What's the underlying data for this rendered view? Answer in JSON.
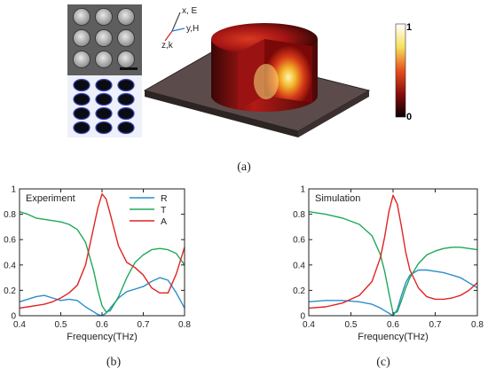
{
  "labels": {
    "a": "(a)",
    "b": "(b)",
    "c": "(c)"
  },
  "colorbar": {
    "max_label": "1",
    "min_label": "0"
  },
  "axes_arrows": {
    "x": "x, E",
    "y": "y,H",
    "z": "z,k"
  },
  "chart_data": [
    {
      "type": "line",
      "corner_label": "Experiment",
      "xlabel": "Frequency(THz)",
      "ylabel": "",
      "xlim": [
        0.4,
        0.8
      ],
      "ylim": [
        0,
        1.0
      ],
      "xticks": [
        "0.4",
        "0.5",
        "0.6",
        "0.7",
        "0.8"
      ],
      "yticks": [
        "0",
        "0.2",
        "0.4",
        "0.6",
        "0.8",
        "1"
      ],
      "legend": "top-right",
      "series": [
        {
          "name": "R",
          "color": "#2a8ec8",
          "x": [
            0.4,
            0.42,
            0.44,
            0.46,
            0.48,
            0.5,
            0.52,
            0.54,
            0.56,
            0.58,
            0.59,
            0.6,
            0.61,
            0.62,
            0.64,
            0.66,
            0.68,
            0.7,
            0.72,
            0.74,
            0.76,
            0.78,
            0.8
          ],
          "y": [
            0.11,
            0.13,
            0.15,
            0.16,
            0.14,
            0.12,
            0.13,
            0.12,
            0.07,
            0.03,
            0.01,
            0.0,
            0.02,
            0.06,
            0.14,
            0.19,
            0.21,
            0.23,
            0.27,
            0.3,
            0.28,
            0.18,
            0.06
          ]
        },
        {
          "name": "T",
          "color": "#1fa85a",
          "x": [
            0.4,
            0.42,
            0.44,
            0.46,
            0.48,
            0.5,
            0.52,
            0.54,
            0.56,
            0.58,
            0.59,
            0.6,
            0.61,
            0.62,
            0.64,
            0.66,
            0.68,
            0.7,
            0.72,
            0.74,
            0.76,
            0.78,
            0.8
          ],
          "y": [
            0.82,
            0.8,
            0.77,
            0.76,
            0.75,
            0.74,
            0.72,
            0.68,
            0.58,
            0.35,
            0.2,
            0.08,
            0.03,
            0.04,
            0.15,
            0.3,
            0.42,
            0.48,
            0.52,
            0.53,
            0.52,
            0.49,
            0.4
          ]
        },
        {
          "name": "A",
          "color": "#e02424",
          "x": [
            0.4,
            0.42,
            0.44,
            0.46,
            0.48,
            0.5,
            0.52,
            0.54,
            0.56,
            0.58,
            0.59,
            0.6,
            0.61,
            0.62,
            0.64,
            0.66,
            0.68,
            0.7,
            0.72,
            0.74,
            0.76,
            0.78,
            0.8
          ],
          "y": [
            0.06,
            0.07,
            0.08,
            0.09,
            0.11,
            0.14,
            0.18,
            0.24,
            0.4,
            0.7,
            0.85,
            0.96,
            0.92,
            0.8,
            0.55,
            0.42,
            0.38,
            0.32,
            0.22,
            0.18,
            0.18,
            0.33,
            0.54
          ]
        }
      ]
    },
    {
      "type": "line",
      "corner_label": "Simulation",
      "xlabel": "Frequency(THz)",
      "ylabel": "",
      "xlim": [
        0.4,
        0.8
      ],
      "ylim": [
        0,
        1.0
      ],
      "xticks": [
        "0.4",
        "0.5",
        "0.6",
        "0.7",
        "0.8"
      ],
      "yticks": [
        "0",
        "0.2",
        "0.4",
        "0.6",
        "0.8",
        "1"
      ],
      "legend": "none",
      "series": [
        {
          "name": "R",
          "color": "#2a8ec8",
          "x": [
            0.4,
            0.44,
            0.48,
            0.52,
            0.55,
            0.57,
            0.58,
            0.59,
            0.6,
            0.61,
            0.62,
            0.63,
            0.64,
            0.66,
            0.68,
            0.7,
            0.72,
            0.74,
            0.76,
            0.78,
            0.8
          ],
          "y": [
            0.11,
            0.12,
            0.12,
            0.11,
            0.09,
            0.06,
            0.04,
            0.02,
            0.0,
            0.05,
            0.16,
            0.26,
            0.32,
            0.36,
            0.36,
            0.35,
            0.34,
            0.32,
            0.3,
            0.26,
            0.22
          ]
        },
        {
          "name": "T",
          "color": "#1fa85a",
          "x": [
            0.4,
            0.44,
            0.48,
            0.52,
            0.55,
            0.57,
            0.58,
            0.59,
            0.6,
            0.61,
            0.62,
            0.63,
            0.64,
            0.66,
            0.68,
            0.7,
            0.72,
            0.74,
            0.76,
            0.78,
            0.8
          ],
          "y": [
            0.82,
            0.8,
            0.77,
            0.72,
            0.63,
            0.48,
            0.35,
            0.18,
            0.02,
            0.03,
            0.12,
            0.22,
            0.3,
            0.41,
            0.48,
            0.51,
            0.53,
            0.54,
            0.54,
            0.53,
            0.52
          ]
        },
        {
          "name": "A",
          "color": "#e02424",
          "x": [
            0.4,
            0.44,
            0.48,
            0.52,
            0.55,
            0.57,
            0.58,
            0.59,
            0.6,
            0.61,
            0.62,
            0.63,
            0.64,
            0.66,
            0.68,
            0.7,
            0.72,
            0.74,
            0.76,
            0.78,
            0.8
          ],
          "y": [
            0.06,
            0.07,
            0.1,
            0.16,
            0.27,
            0.46,
            0.62,
            0.82,
            0.95,
            0.88,
            0.7,
            0.5,
            0.36,
            0.22,
            0.15,
            0.13,
            0.13,
            0.14,
            0.16,
            0.2,
            0.26
          ]
        }
      ]
    }
  ]
}
